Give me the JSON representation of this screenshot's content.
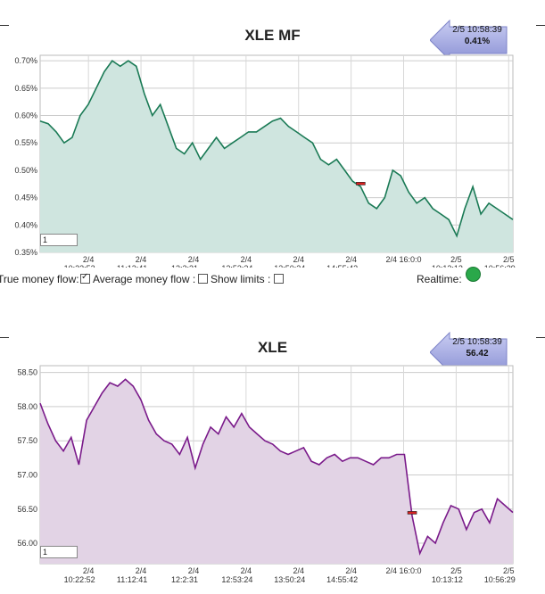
{
  "chart_data": [
    {
      "type": "area",
      "title": "XLE MF",
      "ylim": [
        0.35,
        0.71
      ],
      "y_ticks": [
        "0.35%",
        "0.40%",
        "0.45%",
        "0.50%",
        "0.55%",
        "0.60%",
        "0.65%",
        "0.70%"
      ],
      "y_tick_values": [
        0.35,
        0.4,
        0.45,
        0.5,
        0.55,
        0.6,
        0.65,
        0.7
      ],
      "x_ticks": [
        {
          "date": "2/4",
          "time": "10:22:52"
        },
        {
          "date": "2/4",
          "time": "11:12:41"
        },
        {
          "date": "2/4",
          "time": "12:2:31"
        },
        {
          "date": "2/4",
          "time": "12:53:24"
        },
        {
          "date": "2/4",
          "time": "13:50:24"
        },
        {
          "date": "2/4",
          "time": "14:55:42"
        },
        {
          "date": "2/4 16:0:0",
          "time": ""
        },
        {
          "date": "2/5",
          "time": "10:13:12"
        },
        {
          "date": "2/5",
          "time": "10:56:29"
        }
      ],
      "color": "#1a7a55",
      "fill": "#cfe5df",
      "grid": true,
      "marker_index": 40,
      "values": [
        0.59,
        0.585,
        0.57,
        0.55,
        0.56,
        0.6,
        0.62,
        0.65,
        0.68,
        0.7,
        0.69,
        0.7,
        0.69,
        0.64,
        0.6,
        0.62,
        0.58,
        0.54,
        0.53,
        0.55,
        0.52,
        0.54,
        0.56,
        0.54,
        0.55,
        0.56,
        0.57,
        0.57,
        0.58,
        0.59,
        0.595,
        0.58,
        0.57,
        0.56,
        0.55,
        0.52,
        0.51,
        0.52,
        0.5,
        0.48,
        0.47,
        0.44,
        0.43,
        0.45,
        0.5,
        0.49,
        0.46,
        0.44,
        0.45,
        0.43,
        0.42,
        0.41,
        0.38,
        0.43,
        0.47,
        0.42,
        0.44,
        0.43,
        0.42,
        0.41
      ]
    },
    {
      "type": "area",
      "title": "XLE",
      "ylim": [
        55.7,
        58.6
      ],
      "y_ticks": [
        "56.00",
        "56.50",
        "57.00",
        "57.50",
        "58.00",
        "58.50"
      ],
      "y_tick_values": [
        56.0,
        56.5,
        57.0,
        57.5,
        58.0,
        58.5
      ],
      "x_ticks": [
        {
          "date": "2/4",
          "time": "10:22:52"
        },
        {
          "date": "2/4",
          "time": "11:12:41"
        },
        {
          "date": "2/4",
          "time": "12:2:31"
        },
        {
          "date": "2/4",
          "time": "12:53:24"
        },
        {
          "date": "2/4",
          "time": "13:50:24"
        },
        {
          "date": "2/4",
          "time": "14:55:42"
        },
        {
          "date": "2/4 16:0:0",
          "time": ""
        },
        {
          "date": "2/5",
          "time": "10:13:12"
        },
        {
          "date": "2/5",
          "time": "10:56:29"
        }
      ],
      "color": "#7a1a8a",
      "fill": "#e2d3e5",
      "grid": true,
      "marker_index": 48,
      "values": [
        58.05,
        57.75,
        57.5,
        57.35,
        57.55,
        57.15,
        57.8,
        58.0,
        58.2,
        58.35,
        58.3,
        58.4,
        58.3,
        58.1,
        57.8,
        57.6,
        57.5,
        57.45,
        57.3,
        57.55,
        57.1,
        57.45,
        57.7,
        57.6,
        57.85,
        57.7,
        57.9,
        57.7,
        57.6,
        57.5,
        57.45,
        57.35,
        57.3,
        57.35,
        57.4,
        57.2,
        57.15,
        57.25,
        57.3,
        57.2,
        57.25,
        57.25,
        57.2,
        57.15,
        57.25,
        57.25,
        57.3,
        57.3,
        56.4,
        55.85,
        56.1,
        56.0,
        56.3,
        56.55,
        56.5,
        56.2,
        56.45,
        56.5,
        56.3,
        56.65,
        56.55,
        56.45
      ]
    }
  ],
  "badges": [
    {
      "time": "2/5 10:58:39",
      "value": "0.41%"
    },
    {
      "time": "2/5 10:58:39",
      "value": "56.42"
    }
  ],
  "controls": {
    "true_mf_label": "True money flow:",
    "avg_mf_label": "Average money flow :",
    "show_limits_label": "Show limits :",
    "realtime_label": "Realtime:"
  },
  "zoom_value": "1"
}
